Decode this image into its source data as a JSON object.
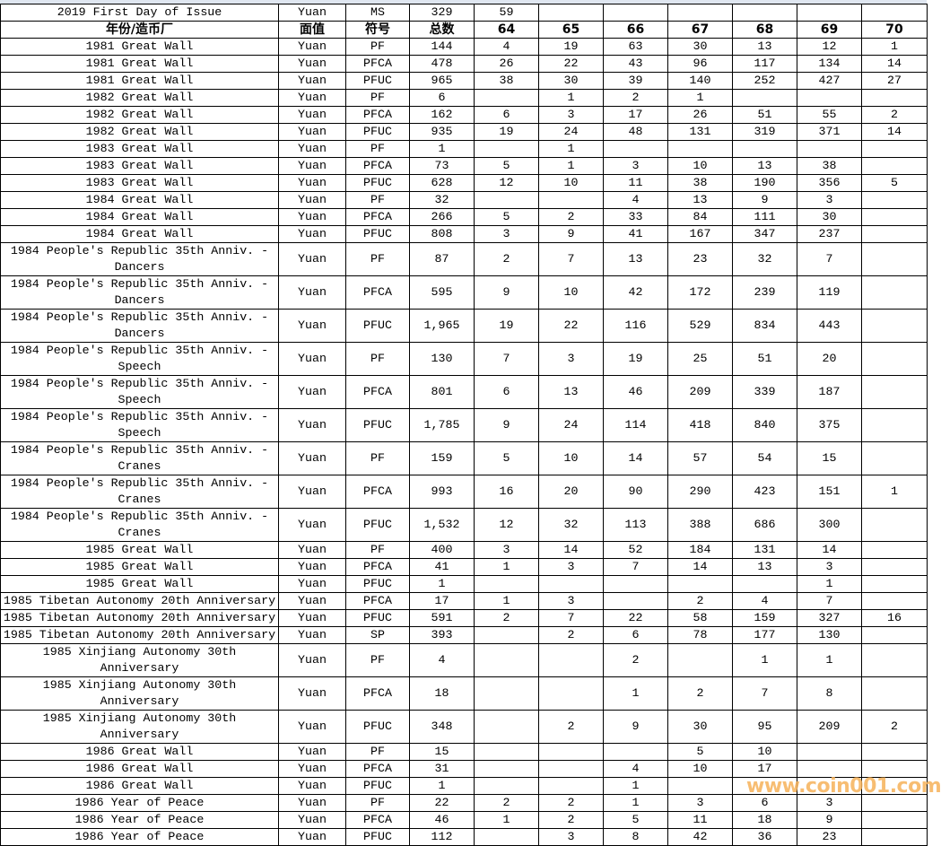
{
  "columns": [
    "年份/造币厂",
    "面值",
    "符号",
    "总数",
    "64",
    "65",
    "66",
    "67",
    "68",
    "69",
    "70"
  ],
  "first_row": [
    "2019 First Day of Issue",
    "Yuan",
    "MS",
    "329",
    "59",
    "",
    "",
    "",
    "",
    "",
    ""
  ],
  "rows": [
    [
      "1981 Great Wall",
      "Yuan",
      "PF",
      "144",
      "4",
      "19",
      "63",
      "30",
      "13",
      "12",
      "1"
    ],
    [
      "1981 Great Wall",
      "Yuan",
      "PFCA",
      "478",
      "26",
      "22",
      "43",
      "96",
      "117",
      "134",
      "14"
    ],
    [
      "1981 Great Wall",
      "Yuan",
      "PFUC",
      "965",
      "38",
      "30",
      "39",
      "140",
      "252",
      "427",
      "27"
    ],
    [
      "1982 Great Wall",
      "Yuan",
      "PF",
      "6",
      "",
      "1",
      "2",
      "1",
      "",
      "",
      ""
    ],
    [
      "1982 Great Wall",
      "Yuan",
      "PFCA",
      "162",
      "6",
      "3",
      "17",
      "26",
      "51",
      "55",
      "2"
    ],
    [
      "1982 Great Wall",
      "Yuan",
      "PFUC",
      "935",
      "19",
      "24",
      "48",
      "131",
      "319",
      "371",
      "14"
    ],
    [
      "1983 Great Wall",
      "Yuan",
      "PF",
      "1",
      "",
      "1",
      "",
      "",
      "",
      "",
      ""
    ],
    [
      "1983 Great Wall",
      "Yuan",
      "PFCA",
      "73",
      "5",
      "1",
      "3",
      "10",
      "13",
      "38",
      ""
    ],
    [
      "1983 Great Wall",
      "Yuan",
      "PFUC",
      "628",
      "12",
      "10",
      "11",
      "38",
      "190",
      "356",
      "5"
    ],
    [
      "1984 Great Wall",
      "Yuan",
      "PF",
      "32",
      "",
      "",
      "4",
      "13",
      "9",
      "3",
      ""
    ],
    [
      "1984 Great Wall",
      "Yuan",
      "PFCA",
      "266",
      "5",
      "2",
      "33",
      "84",
      "111",
      "30",
      ""
    ],
    [
      "1984 Great Wall",
      "Yuan",
      "PFUC",
      "808",
      "3",
      "9",
      "41",
      "167",
      "347",
      "237",
      ""
    ],
    [
      "1984 People's Republic 35th Anniv. - Dancers",
      "Yuan",
      "PF",
      "87",
      "2",
      "7",
      "13",
      "23",
      "32",
      "7",
      ""
    ],
    [
      "1984 People's Republic 35th Anniv. - Dancers",
      "Yuan",
      "PFCA",
      "595",
      "9",
      "10",
      "42",
      "172",
      "239",
      "119",
      ""
    ],
    [
      "1984 People's Republic 35th Anniv. - Dancers",
      "Yuan",
      "PFUC",
      "1,965",
      "19",
      "22",
      "116",
      "529",
      "834",
      "443",
      ""
    ],
    [
      "1984 People's Republic 35th Anniv. - Speech",
      "Yuan",
      "PF",
      "130",
      "7",
      "3",
      "19",
      "25",
      "51",
      "20",
      ""
    ],
    [
      "1984 People's Republic 35th Anniv. - Speech",
      "Yuan",
      "PFCA",
      "801",
      "6",
      "13",
      "46",
      "209",
      "339",
      "187",
      ""
    ],
    [
      "1984 People's Republic 35th Anniv. - Speech",
      "Yuan",
      "PFUC",
      "1,785",
      "9",
      "24",
      "114",
      "418",
      "840",
      "375",
      ""
    ],
    [
      "1984 People's Republic 35th Anniv. - Cranes",
      "Yuan",
      "PF",
      "159",
      "5",
      "10",
      "14",
      "57",
      "54",
      "15",
      ""
    ],
    [
      "1984 People's Republic 35th Anniv. - Cranes",
      "Yuan",
      "PFCA",
      "993",
      "16",
      "20",
      "90",
      "290",
      "423",
      "151",
      "1"
    ],
    [
      "1984 People's Republic 35th Anniv. - Cranes",
      "Yuan",
      "PFUC",
      "1,532",
      "12",
      "32",
      "113",
      "388",
      "686",
      "300",
      ""
    ],
    [
      "1985 Great Wall",
      "Yuan",
      "PF",
      "400",
      "3",
      "14",
      "52",
      "184",
      "131",
      "14",
      ""
    ],
    [
      "1985 Great Wall",
      "Yuan",
      "PFCA",
      "41",
      "1",
      "3",
      "7",
      "14",
      "13",
      "3",
      ""
    ],
    [
      "1985 Great Wall",
      "Yuan",
      "PFUC",
      "1",
      "",
      "",
      "",
      "",
      "",
      "1",
      ""
    ],
    [
      "1985 Tibetan Autonomy 20th Anniversary",
      "Yuan",
      "PFCA",
      "17",
      "1",
      "3",
      "",
      "2",
      "4",
      "7",
      ""
    ],
    [
      "1985 Tibetan Autonomy 20th Anniversary",
      "Yuan",
      "PFUC",
      "591",
      "2",
      "7",
      "22",
      "58",
      "159",
      "327",
      "16"
    ],
    [
      "1985 Tibetan Autonomy 20th Anniversary",
      "Yuan",
      "SP",
      "393",
      "",
      "2",
      "6",
      "78",
      "177",
      "130",
      ""
    ],
    [
      "1985 Xinjiang Autonomy 30th Anniversary",
      "Yuan",
      "PF",
      "4",
      "",
      "",
      "2",
      "",
      "1",
      "1",
      ""
    ],
    [
      "1985 Xinjiang Autonomy 30th Anniversary",
      "Yuan",
      "PFCA",
      "18",
      "",
      "",
      "1",
      "2",
      "7",
      "8",
      ""
    ],
    [
      "1985 Xinjiang Autonomy 30th Anniversary",
      "Yuan",
      "PFUC",
      "348",
      "",
      "2",
      "9",
      "30",
      "95",
      "209",
      "2"
    ],
    [
      "1986 Great Wall",
      "Yuan",
      "PF",
      "15",
      "",
      "",
      "",
      "5",
      "10",
      "",
      ""
    ],
    [
      "1986 Great Wall",
      "Yuan",
      "PFCA",
      "31",
      "",
      "",
      "4",
      "10",
      "17",
      "",
      ""
    ],
    [
      "1986 Great Wall",
      "Yuan",
      "PFUC",
      "1",
      "",
      "",
      "1",
      "",
      "",
      "",
      ""
    ],
    [
      "1986 Year of Peace",
      "Yuan",
      "PF",
      "22",
      "2",
      "2",
      "1",
      "3",
      "6",
      "3",
      ""
    ],
    [
      "1986 Year of Peace",
      "Yuan",
      "PFCA",
      "46",
      "1",
      "2",
      "5",
      "11",
      "18",
      "9",
      ""
    ],
    [
      "1986 Year of Peace",
      "Yuan",
      "PFUC",
      "112",
      "",
      "3",
      "8",
      "42",
      "36",
      "23",
      ""
    ]
  ],
  "watermark": "www.coin001.com",
  "colors": {
    "grid": "#000000",
    "watermark": "#f6b25a",
    "header_strip": "#dfe6f0"
  }
}
